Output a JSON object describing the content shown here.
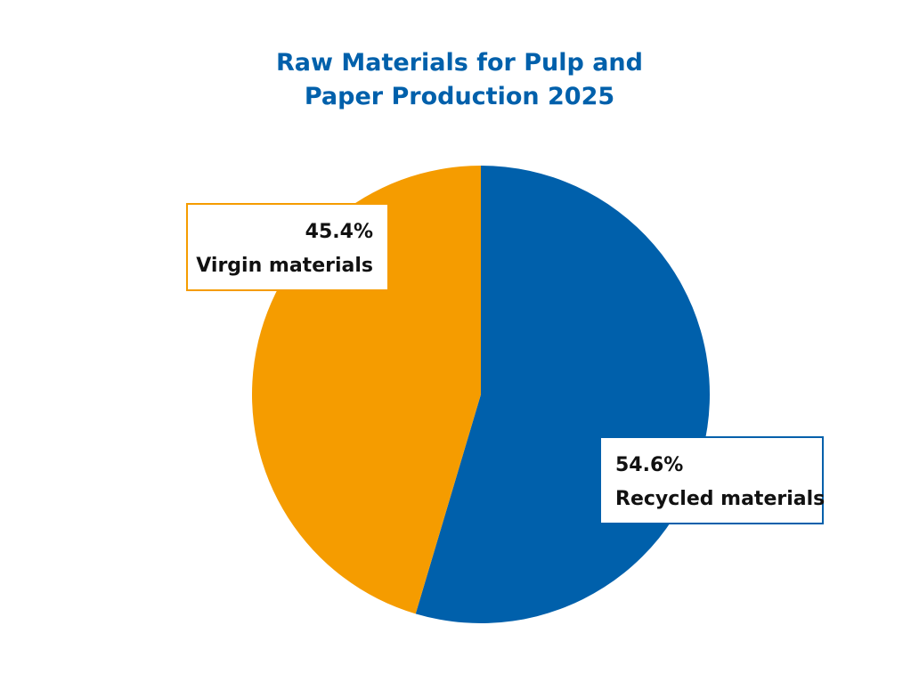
{
  "chart_data": {
    "type": "pie",
    "title": "Raw Materials for Pulp and Paper Production 2025",
    "title_lines": [
      "Raw Materials for Pulp and",
      "Paper Production 2025"
    ],
    "slices": [
      {
        "name": "Recycled materials",
        "value": 54.6,
        "label": "54.6%",
        "color": "#0060ab"
      },
      {
        "name": "Virgin materials",
        "value": 45.4,
        "label": "45.4%",
        "color": "#f59c00"
      }
    ],
    "start_angle": "top (12 o'clock)",
    "direction": "clockwise",
    "legend": "none"
  }
}
